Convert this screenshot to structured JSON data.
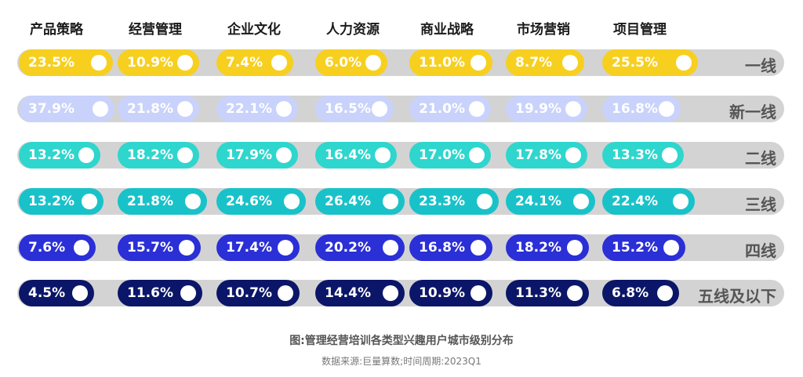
{
  "chart_data": {
    "type": "table",
    "columns": [
      "产品策略",
      "经营管理",
      "企业文化",
      "人力资源",
      "商业战略",
      "市场营销",
      "项目管理"
    ],
    "rows": [
      {
        "label": "一线",
        "color": "#f7cf1f",
        "text_color": "#ffffff",
        "values": [
          "23.5%",
          "10.9%",
          "7.4%",
          "6.0%",
          "11.0%",
          "8.7%",
          "25.5%"
        ]
      },
      {
        "label": "新一线",
        "color": "#c9d2fb",
        "text_color": "#ffffff",
        "values": [
          "37.9%",
          "21.8%",
          "22.1%",
          "16.5%",
          "21.0%",
          "19.9%",
          "16.8%"
        ]
      },
      {
        "label": "二线",
        "color": "#2ed6cd",
        "text_color": "#ffffff",
        "values": [
          "13.2%",
          "18.2%",
          "17.9%",
          "16.4%",
          "17.0%",
          "17.8%",
          "13.3%"
        ]
      },
      {
        "label": "三线",
        "color": "#19c2c9",
        "text_color": "#ffffff",
        "values": [
          "13.2%",
          "21.8%",
          "24.6%",
          "26.4%",
          "23.3%",
          "24.1%",
          "22.4%"
        ]
      },
      {
        "label": "四线",
        "color": "#2b2fd6",
        "text_color": "#ffffff",
        "values": [
          "7.6%",
          "15.7%",
          "17.4%",
          "20.2%",
          "16.8%",
          "18.2%",
          "15.2%"
        ]
      },
      {
        "label": "五线及以下",
        "color": "#0b1668",
        "text_color": "#ffffff",
        "values": [
          "4.5%",
          "11.6%",
          "10.7%",
          "14.4%",
          "10.9%",
          "11.3%",
          "6.8%"
        ]
      }
    ],
    "track_color": "#d3d3d3"
  },
  "caption": {
    "title": "图:管理经营培训各类型兴趣用户城市级别分布",
    "source": "数据来源:巨量算数;时间周期:2023Q1"
  }
}
